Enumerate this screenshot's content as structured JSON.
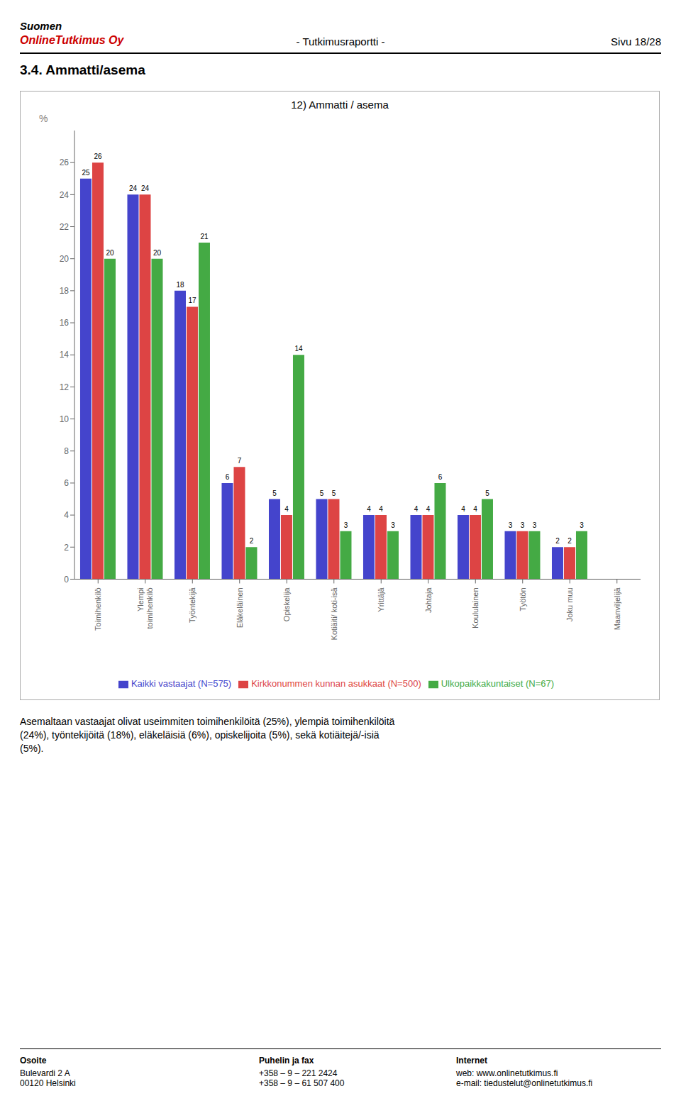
{
  "chart_data": {
    "type": "bar",
    "title": "12) Ammatti / asema",
    "categories": [
      "Toimihenkilö",
      "Ylempi\ntoimihenkilö",
      "Työntekijä",
      "Eläkeläinen",
      "Opiskelija",
      "Kotiäiti/ koti-isä",
      "Yrittäjä",
      "Johtaja",
      "Koululainen",
      "Työtön",
      "Joku muu",
      "Maanviljelijä"
    ],
    "series": [
      {
        "name": "Kaikki vastaajat (N=575)",
        "color": "#4444cc",
        "values": [
          25,
          24,
          18,
          6,
          5,
          5,
          4,
          4,
          4,
          3,
          2,
          0
        ]
      },
      {
        "name": "Kirkkonummen kunnan asukkaat (N=500)",
        "color": "#dd4444",
        "values": [
          26,
          24,
          17,
          7,
          4,
          5,
          4,
          4,
          4,
          3,
          2,
          0
        ]
      },
      {
        "name": "Ulkopaikkakuntaiset (N=67)",
        "color": "#44aa44",
        "values": [
          20,
          20,
          21,
          2,
          14,
          3,
          3,
          6,
          5,
          3,
          3,
          0
        ]
      }
    ],
    "y_label": "%",
    "ylim": [
      0,
      28
    ],
    "yticks": [
      0,
      2,
      4,
      6,
      8,
      10,
      12,
      14,
      16,
      18,
      20,
      22,
      24,
      26
    ],
    "grid": false,
    "legend": "bottom",
    "data_labels": true,
    "annotations": [
      "Suomen",
      "OnlineTutkimus Oy",
      "- Tutkimusraportti -",
      "Sivu 18/28",
      "3.4. Ammatti/asema",
      "Asemaltaan vastaajat olivat useimmiten toimihenkilöitä (25%), ylempiä toimihenkilöitä\n(24%), työntekijöitä (18%), eläkeläisiä (6%), opiskelijoita (5%), sekä kotiäitejä/-isiä\n(5%).",
      "Osoite",
      "Bulevardi 2 A\n00120 Helsinki",
      "Puhelin ja fax",
      "+358 – 9 – 221 2424\n+358 – 9 – 61 507 400",
      "Internet",
      "web: www.onlinetutkimus.fi\ne-mail: tiedustelut@onlinetutkimus.fi"
    ]
  }
}
